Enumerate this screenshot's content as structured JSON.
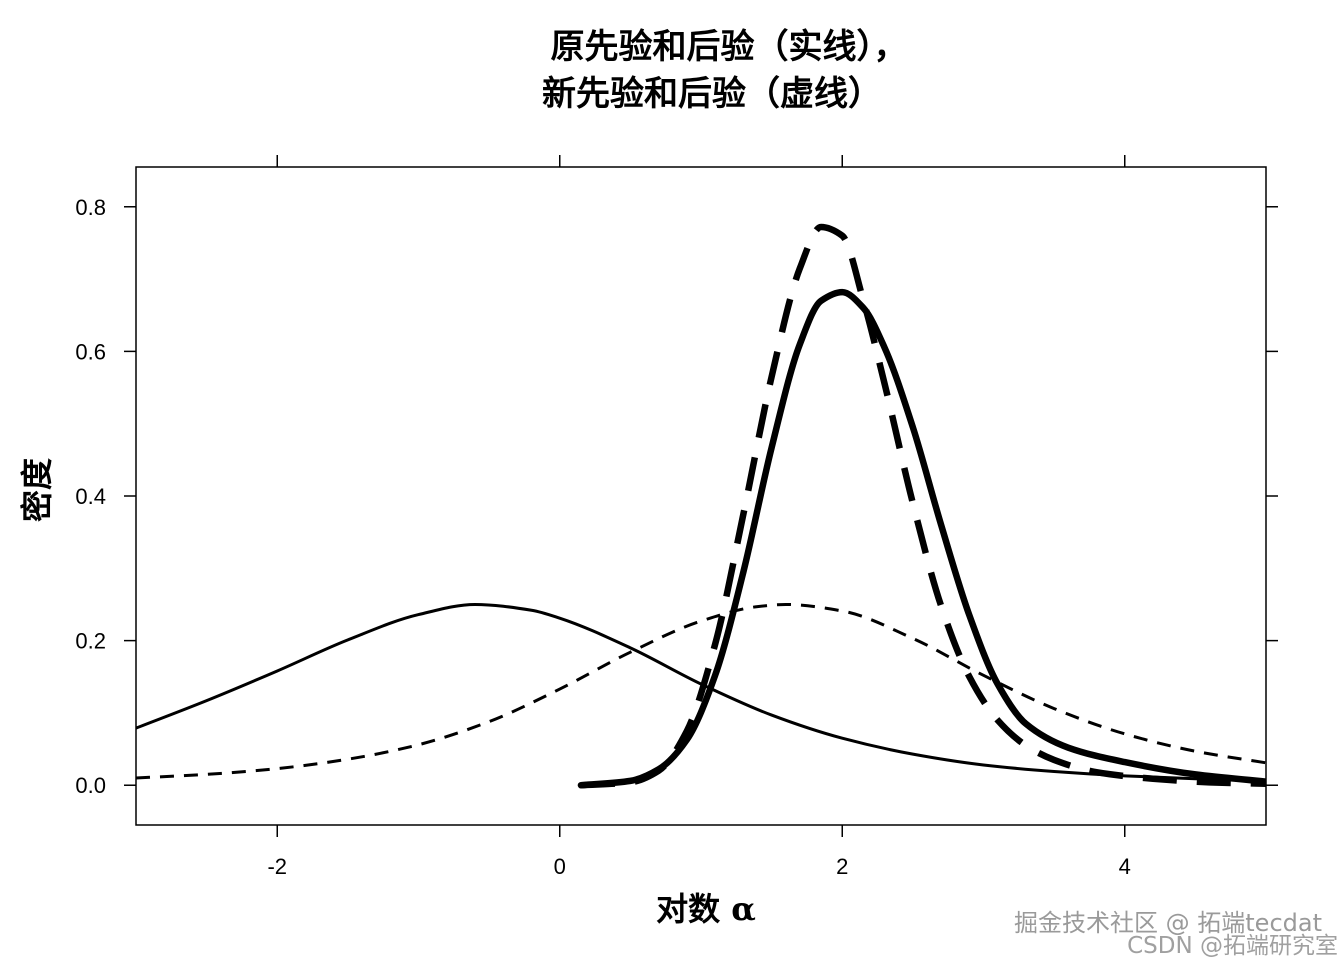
{
  "chart_data": {
    "type": "line",
    "title_lines": [
      "原先验和后验（实线），",
      "新先验和后验（虚线）"
    ],
    "xlabel": "对数 α",
    "ylabel": "密度",
    "xlim": [
      -3.0,
      5.0
    ],
    "ylim": [
      -0.055,
      0.855
    ],
    "x_ticks": [
      -2,
      0,
      2,
      4
    ],
    "x_tick_labels": [
      "-2",
      "0",
      "2",
      "4"
    ],
    "y_ticks": [
      0.0,
      0.2,
      0.4,
      0.6,
      0.8
    ],
    "y_tick_labels": [
      "0.0",
      "0.2",
      "0.4",
      "0.6",
      "0.8"
    ],
    "grid": false,
    "legend": "none",
    "series": [
      {
        "style": "solid-thin",
        "x": [
          -3.0,
          -2.5,
          -2.0,
          -1.5,
          -1.0,
          -0.6,
          -0.2,
          0.0,
          0.5,
          1.0,
          1.5,
          2.0,
          2.5,
          3.0,
          3.5,
          4.0,
          4.5,
          5.0
        ],
        "y": [
          0.079,
          0.117,
          0.158,
          0.201,
          0.236,
          0.25,
          0.242,
          0.231,
          0.19,
          0.14,
          0.097,
          0.065,
          0.043,
          0.028,
          0.019,
          0.013,
          0.009,
          0.006
        ]
      },
      {
        "style": "dashed-thin",
        "x": [
          -3.0,
          -2.5,
          -2.0,
          -1.5,
          -1.0,
          -0.5,
          0.0,
          0.5,
          1.0,
          1.4,
          1.6,
          2.0,
          2.5,
          3.0,
          3.5,
          4.0,
          4.5,
          5.0
        ],
        "y": [
          0.01,
          0.015,
          0.023,
          0.036,
          0.056,
          0.088,
          0.133,
          0.184,
          0.227,
          0.247,
          0.25,
          0.241,
          0.203,
          0.152,
          0.106,
          0.071,
          0.047,
          0.031
        ]
      },
      {
        "style": "solid-thick",
        "x": [
          0.15,
          0.5,
          0.7,
          0.9,
          1.1,
          1.3,
          1.5,
          1.7,
          1.85,
          2.0,
          2.15,
          2.3,
          2.5,
          2.7,
          2.9,
          3.1,
          3.3,
          3.6,
          4.0,
          4.5,
          5.0
        ],
        "y": [
          0.0,
          0.006,
          0.022,
          0.063,
          0.152,
          0.295,
          0.467,
          0.61,
          0.67,
          0.682,
          0.66,
          0.605,
          0.495,
          0.36,
          0.235,
          0.14,
          0.085,
          0.052,
          0.032,
          0.015,
          0.005
        ]
      },
      {
        "style": "dashed-thick",
        "x": [
          0.15,
          0.5,
          0.7,
          0.9,
          1.1,
          1.3,
          1.5,
          1.7,
          1.85,
          2.0,
          2.15,
          2.3,
          2.5,
          2.7,
          2.9,
          3.1,
          3.3,
          3.5,
          3.8,
          4.2,
          4.6,
          5.0
        ],
        "y": [
          0.0,
          0.004,
          0.02,
          0.075,
          0.195,
          0.375,
          0.565,
          0.715,
          0.772,
          0.76,
          0.67,
          0.555,
          0.39,
          0.248,
          0.15,
          0.09,
          0.055,
          0.035,
          0.018,
          0.009,
          0.004,
          0.002
        ]
      }
    ]
  },
  "watermark": {
    "line1": "掘金技术社区 @ 拓端tecdat",
    "line2": "CSDN @拓端研究室"
  }
}
